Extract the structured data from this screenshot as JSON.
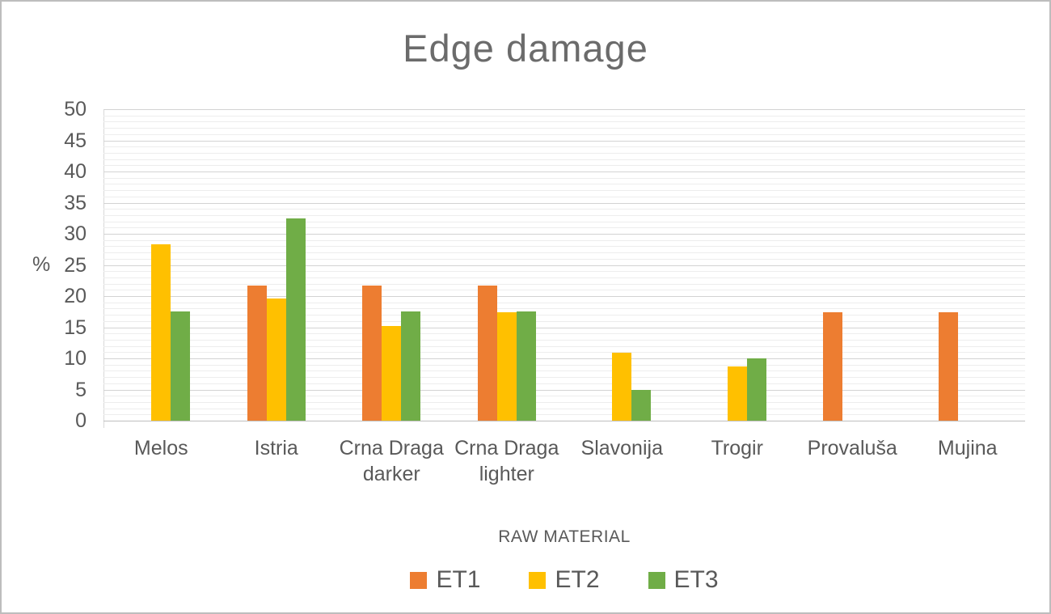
{
  "chart_data": {
    "type": "bar",
    "title": "Edge damage",
    "ylabel": "%",
    "xlabel": "RAW MATERIAL",
    "categories": [
      "Melos",
      "Istria",
      "Crna Draga darker",
      "Crna Draga lighter",
      "Slavonija",
      "Trogir",
      "Provaluša",
      "Mujina"
    ],
    "series": [
      {
        "name": "ET1",
        "color": "#ED7D31",
        "values": [
          0,
          21.7,
          21.7,
          21.7,
          0,
          0,
          17.4,
          17.4
        ]
      },
      {
        "name": "ET2",
        "color": "#FFC000",
        "values": [
          28.3,
          19.6,
          15.2,
          17.4,
          10.9,
          8.7,
          0,
          0
        ]
      },
      {
        "name": "ET3",
        "color": "#70AD47",
        "values": [
          17.5,
          32.5,
          17.5,
          17.5,
          5,
          10,
          0,
          0
        ]
      }
    ],
    "ylim": [
      0,
      50
    ],
    "yticks": [
      "0",
      "5",
      "10",
      "15",
      "20",
      "25",
      "30",
      "35",
      "40",
      "45",
      "50"
    ],
    "minor_gridline_step": 1,
    "major_gridline_step": 5,
    "grid": true,
    "legend_position": "bottom"
  },
  "colors": {
    "title_text": "#6b6b6b",
    "axis_text": "#595959",
    "minor_gridline": "#ededed",
    "major_gridline": "#d3d3d3",
    "baseline": "#bfbfbf",
    "frame_border": "#bdbdbd"
  }
}
